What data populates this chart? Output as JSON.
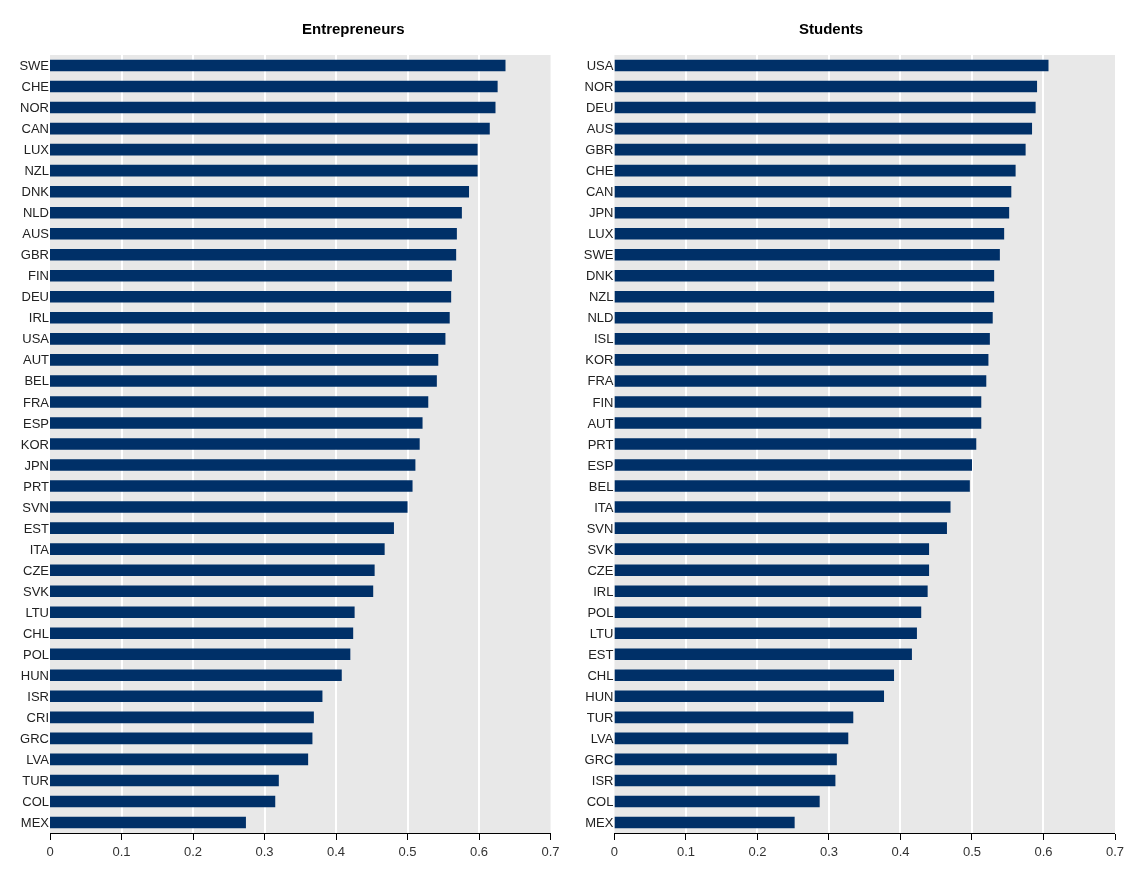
{
  "chart_data": [
    {
      "type": "bar",
      "orientation": "horizontal",
      "title": "Entrepreneurs",
      "color": "#003068",
      "xlim": [
        0,
        0.7
      ],
      "xticks": [
        0,
        0.1,
        0.2,
        0.3,
        0.4,
        0.5,
        0.6,
        0.7
      ],
      "grid": "x",
      "categories": [
        "SWE",
        "CHE",
        "NOR",
        "CAN",
        "LUX",
        "NZL",
        "DNK",
        "NLD",
        "AUS",
        "GBR",
        "FIN",
        "DEU",
        "IRL",
        "USA",
        "AUT",
        "BEL",
        "FRA",
        "ESP",
        "KOR",
        "JPN",
        "PRT",
        "SVN",
        "EST",
        "ITA",
        "CZE",
        "SVK",
        "LTU",
        "CHL",
        "POL",
        "HUN",
        "ISR",
        "CRI",
        "GRC",
        "LVA",
        "TUR",
        "COL",
        "MEX"
      ],
      "values": [
        0.637,
        0.626,
        0.623,
        0.615,
        0.598,
        0.598,
        0.586,
        0.576,
        0.569,
        0.568,
        0.562,
        0.561,
        0.559,
        0.553,
        0.543,
        0.541,
        0.529,
        0.521,
        0.517,
        0.511,
        0.507,
        0.5,
        0.481,
        0.468,
        0.454,
        0.452,
        0.426,
        0.424,
        0.42,
        0.408,
        0.381,
        0.369,
        0.367,
        0.361,
        0.32,
        0.315,
        0.274
      ]
    },
    {
      "type": "bar",
      "orientation": "horizontal",
      "title": "Students",
      "color": "#003068",
      "xlim": [
        0,
        0.7
      ],
      "xticks": [
        0,
        0.1,
        0.2,
        0.3,
        0.4,
        0.5,
        0.6,
        0.7
      ],
      "grid": "x",
      "categories": [
        "USA",
        "NOR",
        "DEU",
        "AUS",
        "GBR",
        "CHE",
        "CAN",
        "JPN",
        "LUX",
        "SWE",
        "DNK",
        "NZL",
        "NLD",
        "ISL",
        "KOR",
        "FRA",
        "FIN",
        "AUT",
        "PRT",
        "ESP",
        "BEL",
        "ITA",
        "SVN",
        "SVK",
        "CZE",
        "IRL",
        "POL",
        "LTU",
        "EST",
        "CHL",
        "HUN",
        "TUR",
        "LVA",
        "GRC",
        "ISR",
        "COL",
        "MEX"
      ],
      "values": [
        0.607,
        0.591,
        0.589,
        0.584,
        0.575,
        0.561,
        0.555,
        0.552,
        0.545,
        0.539,
        0.531,
        0.531,
        0.529,
        0.525,
        0.523,
        0.52,
        0.513,
        0.513,
        0.506,
        0.5,
        0.497,
        0.47,
        0.465,
        0.44,
        0.44,
        0.438,
        0.429,
        0.423,
        0.416,
        0.391,
        0.377,
        0.334,
        0.327,
        0.311,
        0.309,
        0.287,
        0.252
      ]
    }
  ]
}
